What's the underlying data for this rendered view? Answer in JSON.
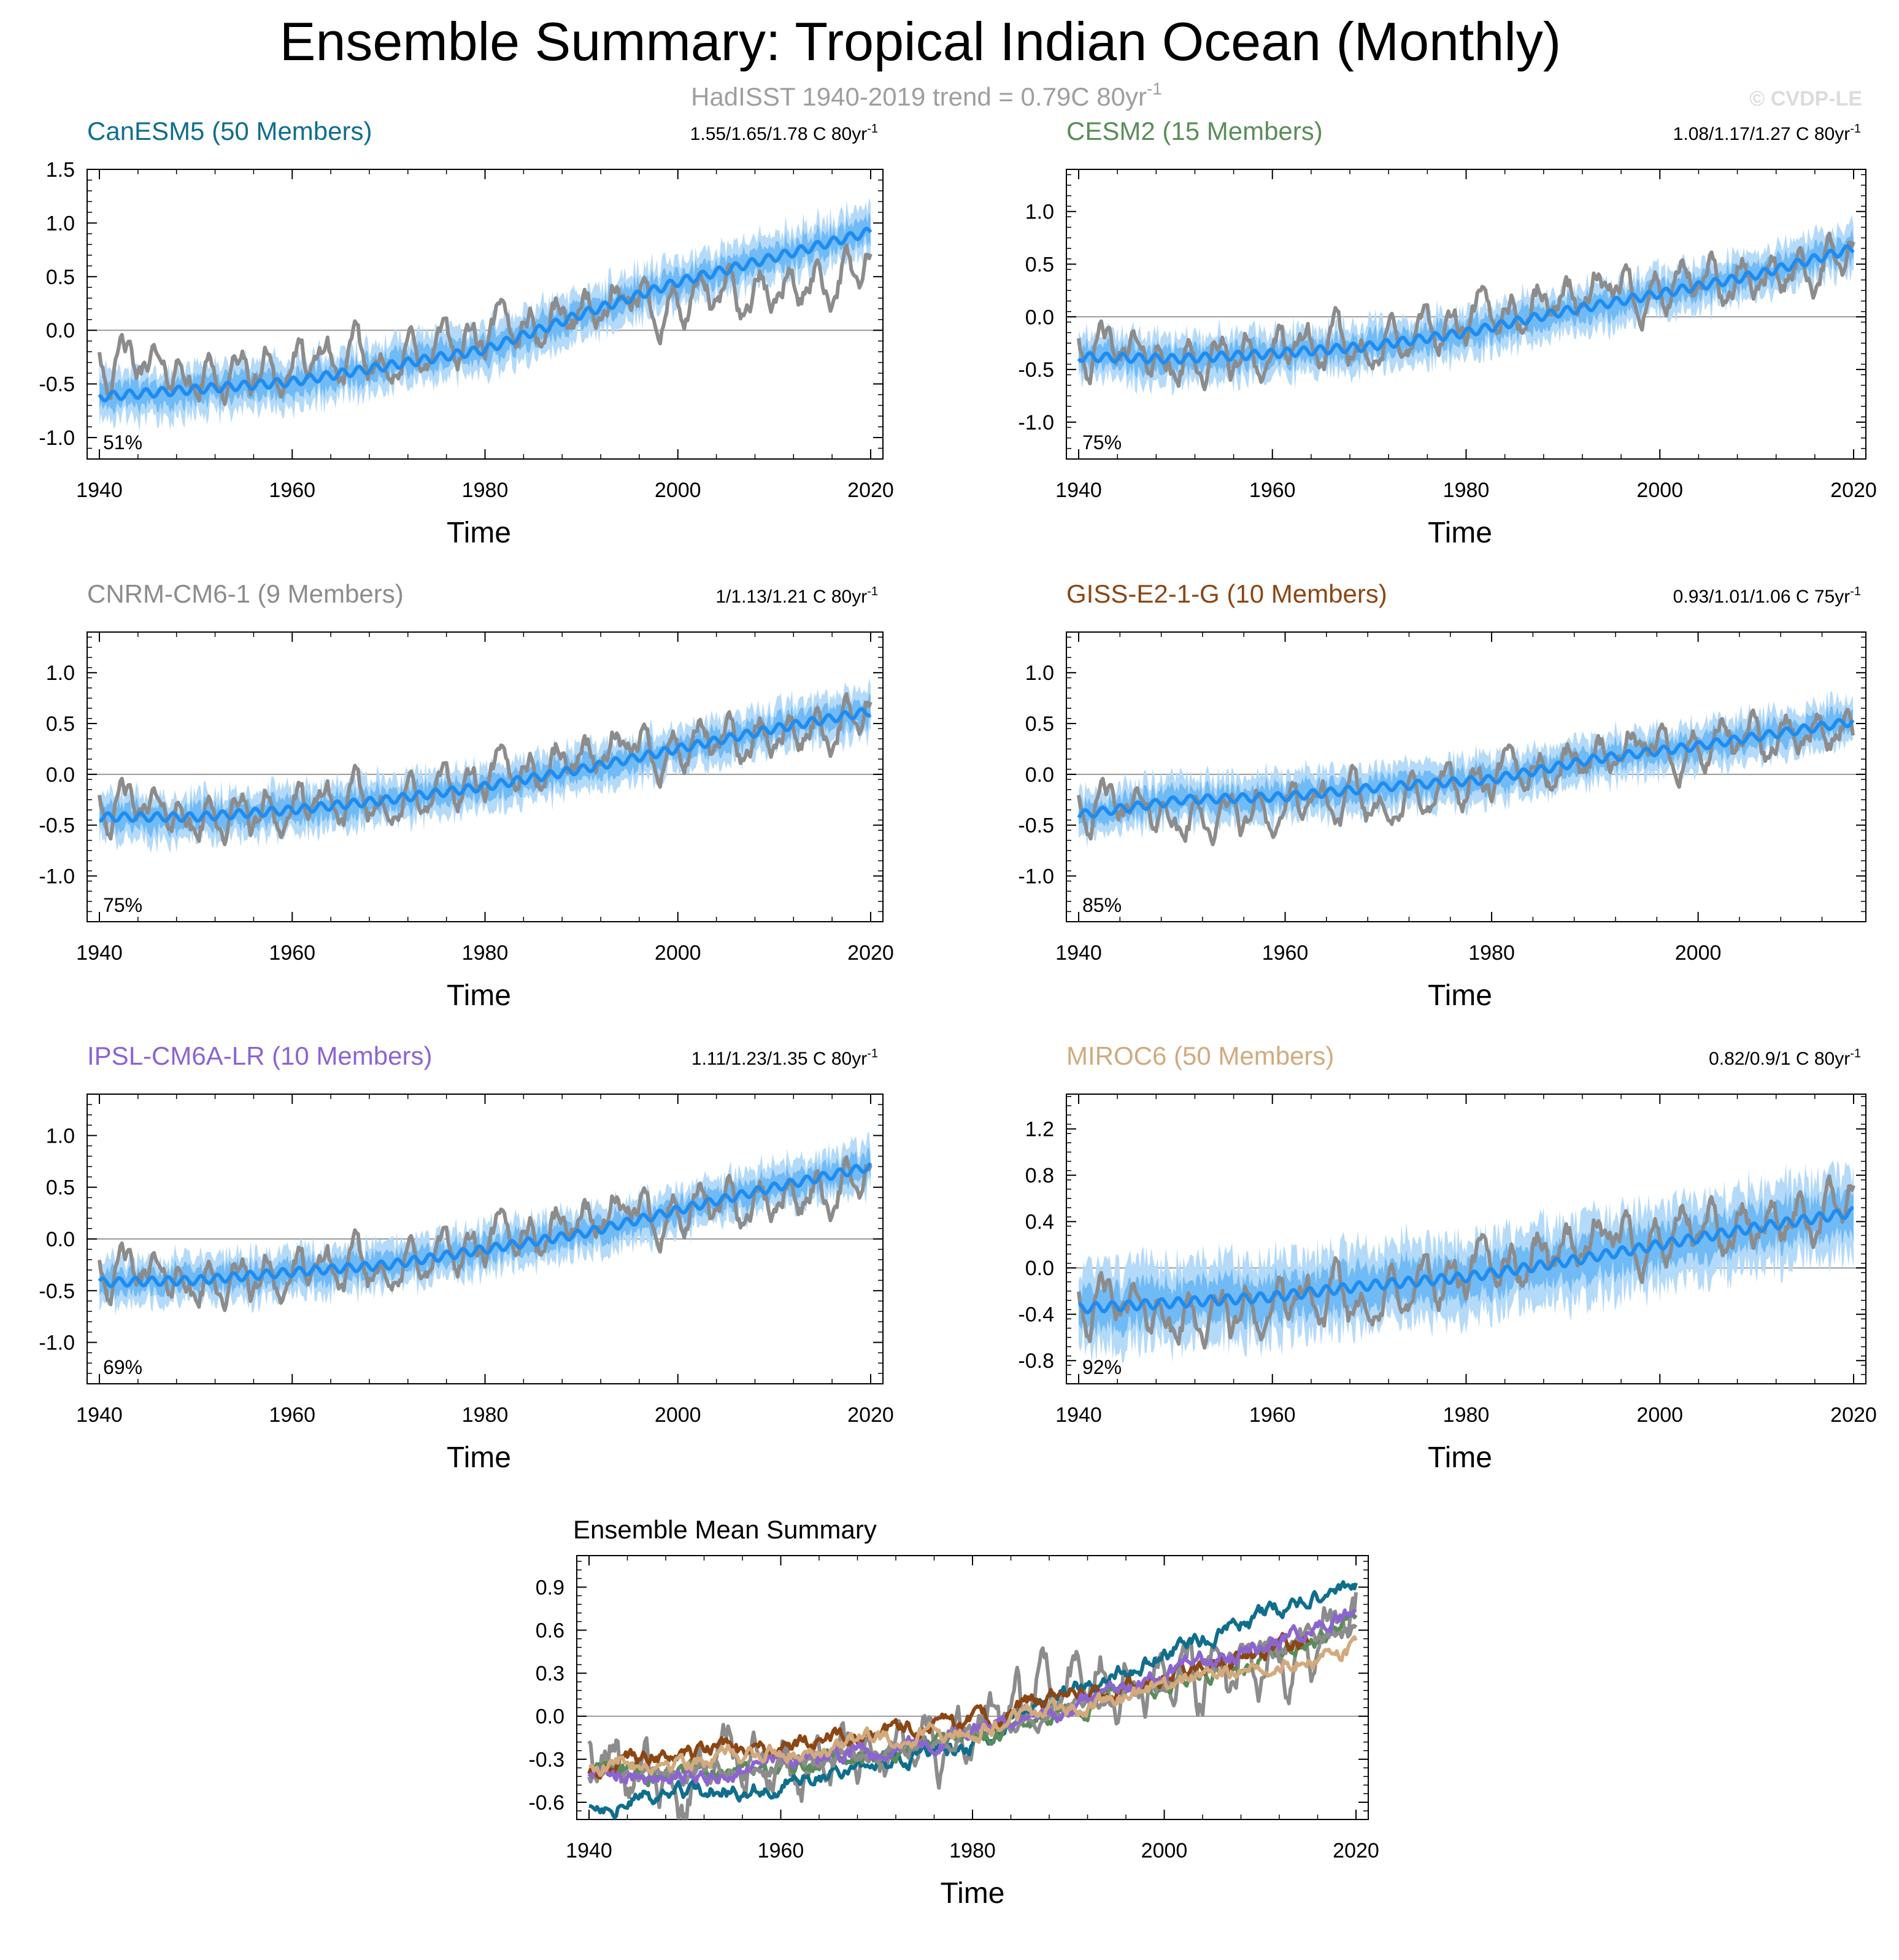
{
  "figure": {
    "title": "Ensemble Summary: Tropical Indian Ocean (Monthly)",
    "subtitle_main": "HadISST 1940-2019 trend = 0.79C 80yr",
    "subtitle_sup": "-1",
    "credit": "© CVDP-LE"
  },
  "colors": {
    "obs": "#8c8c8c",
    "ens_mean": "#1e8cf0",
    "ens_band_outer": "#b4dafa",
    "ens_band_inner": "#64b4f5",
    "zero_line": "#9a9a9a",
    "canesm5": "#0f6e8c",
    "cesm2": "#5a8c5a",
    "cnrm": "#8c8c8c",
    "giss": "#8c4614",
    "ipsl": "#8c64d2",
    "miroc6": "#d2aa7d"
  },
  "chart_data": [
    {
      "id": "canesm5",
      "type": "line",
      "title": "CanESM5 (50 Members)",
      "title_color": "#0f6e8c",
      "trend_text": "1.55/1.65/1.78 C 80yr",
      "trend_sup": "-1",
      "percent_label": "51%",
      "xlabel": "Time",
      "xlim": [
        1940,
        2020
      ],
      "ylim": [
        -1.2,
        1.5
      ],
      "xticks": [
        1940,
        1960,
        1980,
        2000,
        2020
      ],
      "yticks": [
        -1.0,
        -0.5,
        0.0,
        0.5,
        1.0,
        1.5
      ],
      "ytick_labels": [
        "-1.0",
        "-0.5",
        "0.0",
        "0.5",
        "1.0",
        "1.5"
      ],
      "series": [
        {
          "name": "Ensemble mean",
          "x": [
            1940,
            1950,
            1960,
            1970,
            1980,
            1990,
            2000,
            2010,
            2020
          ],
          "values": [
            -0.62,
            -0.55,
            -0.48,
            -0.33,
            -0.18,
            0.15,
            0.45,
            0.68,
            0.92
          ]
        },
        {
          "name": "HadISST",
          "x": [
            1940,
            1950,
            1960,
            1970,
            1980,
            1990,
            2000,
            2010,
            2020
          ],
          "values": [
            -0.25,
            -0.45,
            -0.35,
            -0.3,
            -0.1,
            0.2,
            0.25,
            0.35,
            0.6
          ]
        }
      ]
    },
    {
      "id": "cesm2",
      "type": "line",
      "title": "CESM2 (15 Members)",
      "title_color": "#5a8c5a",
      "trend_text": "1.08/1.17/1.27 C 80yr",
      "trend_sup": "-1",
      "percent_label": "75%",
      "xlabel": "Time",
      "xlim": [
        1940,
        2020
      ],
      "ylim": [
        -1.35,
        1.4
      ],
      "xticks": [
        1940,
        1960,
        1980,
        2000,
        2020
      ],
      "yticks": [
        -1.0,
        -0.5,
        0.0,
        0.5,
        1.0
      ],
      "ytick_labels": [
        "-1.0",
        "-0.5",
        "0.0",
        "0.5",
        "1.0"
      ],
      "series": [
        {
          "name": "Ensemble mean",
          "x": [
            1940,
            1950,
            1960,
            1970,
            1980,
            1990,
            2000,
            2010,
            2020
          ],
          "values": [
            -0.38,
            -0.4,
            -0.35,
            -0.28,
            -0.15,
            0.05,
            0.22,
            0.4,
            0.65
          ]
        },
        {
          "name": "HadISST",
          "x": [
            1940,
            1950,
            1960,
            1970,
            1980,
            1990,
            2000,
            2010,
            2020
          ],
          "values": [
            -0.25,
            -0.45,
            -0.35,
            -0.3,
            -0.1,
            0.2,
            0.25,
            0.35,
            0.6
          ]
        }
      ]
    },
    {
      "id": "cnrm",
      "type": "line",
      "title": "CNRM-CM6-1 (9 Members)",
      "title_color": "#8c8c8c",
      "trend_text": "1/1.13/1.21 C 80yr",
      "trend_sup": "-1",
      "percent_label": "75%",
      "xlabel": "Time",
      "xlim": [
        1940,
        2020
      ],
      "ylim": [
        -1.45,
        1.4
      ],
      "xticks": [
        1940,
        1960,
        1980,
        2000,
        2020
      ],
      "yticks": [
        -1.0,
        -0.5,
        0.0,
        0.5,
        1.0
      ],
      "ytick_labels": [
        "-1.0",
        "-0.5",
        "0.0",
        "0.5",
        "1.0"
      ],
      "series": [
        {
          "name": "Ensemble mean",
          "x": [
            1940,
            1950,
            1960,
            1970,
            1980,
            1990,
            2000,
            2010,
            2020
          ],
          "values": [
            -0.42,
            -0.42,
            -0.35,
            -0.25,
            -0.12,
            0.05,
            0.25,
            0.45,
            0.62
          ]
        },
        {
          "name": "HadISST",
          "x": [
            1940,
            1950,
            1960,
            1970,
            1980,
            1990,
            2000,
            2010,
            2020
          ],
          "values": [
            -0.25,
            -0.45,
            -0.35,
            -0.3,
            -0.1,
            0.2,
            0.25,
            0.35,
            0.6
          ]
        }
      ]
    },
    {
      "id": "giss",
      "type": "line",
      "title": "GISS-E2-1-G (10 Members)",
      "title_color": "#8c4614",
      "trend_text": "0.93/1.01/1.06 C 75yr",
      "trend_sup": "-1",
      "percent_label": "85%",
      "xlabel": "Time",
      "xlim": [
        1940,
        2015
      ],
      "ylim": [
        -1.45,
        1.4
      ],
      "xticks": [
        1940,
        1960,
        1980,
        2000
      ],
      "yticks": [
        -1.0,
        -0.5,
        0.0,
        0.5,
        1.0
      ],
      "ytick_labels": [
        "-1.0",
        "-0.5",
        "0.0",
        "0.5",
        "1.0"
      ],
      "series": [
        {
          "name": "Ensemble mean",
          "x": [
            1940,
            1950,
            1960,
            1970,
            1980,
            1990,
            2000,
            2015
          ],
          "values": [
            -0.4,
            -0.25,
            -0.22,
            -0.12,
            -0.05,
            0.15,
            0.28,
            0.52
          ]
        },
        {
          "name": "HadISST",
          "x": [
            1940,
            1950,
            1960,
            1970,
            1980,
            1990,
            2000,
            2015
          ],
          "values": [
            -0.25,
            -0.45,
            -0.35,
            -0.3,
            -0.1,
            0.2,
            0.25,
            0.45
          ]
        }
      ]
    },
    {
      "id": "ipsl",
      "type": "line",
      "title": "IPSL-CM6A-LR (10 Members)",
      "title_color": "#8c64d2",
      "trend_text": "1.11/1.23/1.35 C 80yr",
      "trend_sup": "-1",
      "percent_label": "69%",
      "xlabel": "Time",
      "xlim": [
        1940,
        2020
      ],
      "ylim": [
        -1.4,
        1.4
      ],
      "xticks": [
        1940,
        1960,
        1980,
        2000,
        2020
      ],
      "yticks": [
        -1.0,
        -0.5,
        0.0,
        0.5,
        1.0
      ],
      "ytick_labels": [
        "-1.0",
        "-0.5",
        "0.0",
        "0.5",
        "1.0"
      ],
      "series": [
        {
          "name": "Ensemble mean",
          "x": [
            1940,
            1950,
            1960,
            1970,
            1980,
            1990,
            2000,
            2010,
            2020
          ],
          "values": [
            -0.42,
            -0.4,
            -0.32,
            -0.25,
            -0.1,
            0.05,
            0.28,
            0.5,
            0.7
          ]
        },
        {
          "name": "HadISST",
          "x": [
            1940,
            1950,
            1960,
            1970,
            1980,
            1990,
            2000,
            2010,
            2020
          ],
          "values": [
            -0.25,
            -0.45,
            -0.35,
            -0.3,
            -0.1,
            0.2,
            0.25,
            0.35,
            0.6
          ]
        }
      ]
    },
    {
      "id": "miroc6",
      "type": "line",
      "title": "MIROC6 (50 Members)",
      "title_color": "#d2aa7d",
      "trend_text": "0.82/0.9/1 C 80yr",
      "trend_sup": "-1",
      "percent_label": "92%",
      "xlabel": "Time",
      "xlim": [
        1940,
        2020
      ],
      "ylim": [
        -1.0,
        1.5
      ],
      "xticks": [
        1940,
        1960,
        1980,
        2000,
        2020
      ],
      "yticks": [
        -0.8,
        -0.4,
        0.0,
        0.4,
        0.8,
        1.2
      ],
      "ytick_labels": [
        "-0.8",
        "-0.4",
        "0.0",
        "0.4",
        "0.8",
        "1.2"
      ],
      "series": [
        {
          "name": "Ensemble mean",
          "x": [
            1940,
            1950,
            1960,
            1970,
            1980,
            1990,
            2000,
            2010,
            2020
          ],
          "values": [
            -0.35,
            -0.3,
            -0.25,
            -0.15,
            -0.08,
            0.05,
            0.2,
            0.35,
            0.48
          ]
        },
        {
          "name": "HadISST",
          "x": [
            1940,
            1950,
            1960,
            1970,
            1980,
            1990,
            2000,
            2010,
            2020
          ],
          "values": [
            -0.25,
            -0.45,
            -0.35,
            -0.3,
            -0.1,
            0.2,
            0.25,
            0.35,
            0.6
          ]
        }
      ]
    },
    {
      "id": "summary",
      "type": "line",
      "title": "Ensemble Mean Summary",
      "title_color": "#000000",
      "xlabel": "Time",
      "xlim": [
        1940,
        2020
      ],
      "ylim": [
        -0.72,
        1.12
      ],
      "xticks": [
        1940,
        1960,
        1980,
        2000,
        2020
      ],
      "yticks": [
        -0.6,
        -0.3,
        0.0,
        0.3,
        0.6,
        0.9
      ],
      "ytick_labels": [
        "-0.6",
        "-0.3",
        "0.0",
        "0.3",
        "0.6",
        "0.9"
      ],
      "series": [
        {
          "name": "HadISST",
          "color": "#8c8c8c",
          "x": [
            1940,
            1950,
            1960,
            1970,
            1980,
            1990,
            2000,
            2010,
            2020
          ],
          "values": [
            -0.25,
            -0.45,
            -0.35,
            -0.3,
            -0.1,
            0.2,
            0.25,
            0.35,
            0.6
          ]
        },
        {
          "name": "CanESM5",
          "color": "#0f6e8c",
          "x": [
            1940,
            1950,
            1960,
            1970,
            1980,
            1990,
            2000,
            2010,
            2020
          ],
          "values": [
            -0.62,
            -0.55,
            -0.48,
            -0.33,
            -0.18,
            0.15,
            0.45,
            0.68,
            0.92
          ]
        },
        {
          "name": "CESM2",
          "color": "#5a8c5a",
          "x": [
            1940,
            1950,
            1960,
            1970,
            1980,
            1990,
            2000,
            2010,
            2020
          ],
          "values": [
            -0.38,
            -0.4,
            -0.35,
            -0.28,
            -0.15,
            0.05,
            0.22,
            0.4,
            0.65
          ]
        },
        {
          "name": "CNRM-CM6-1",
          "color": "#8c8c8c",
          "x": [
            1940,
            1950,
            1960,
            1970,
            1980,
            1990,
            2000,
            2010,
            2020
          ],
          "values": [
            -0.42,
            -0.42,
            -0.35,
            -0.25,
            -0.12,
            0.05,
            0.25,
            0.45,
            0.62
          ]
        },
        {
          "name": "GISS-E2-1-G",
          "color": "#8c4614",
          "x": [
            1940,
            1950,
            1960,
            1970,
            1980,
            1990,
            2000,
            2015
          ],
          "values": [
            -0.4,
            -0.25,
            -0.22,
            -0.12,
            -0.05,
            0.15,
            0.28,
            0.52
          ]
        },
        {
          "name": "IPSL-CM6A-LR",
          "color": "#8c64d2",
          "x": [
            1940,
            1950,
            1960,
            1970,
            1980,
            1990,
            2000,
            2010,
            2020
          ],
          "values": [
            -0.42,
            -0.4,
            -0.32,
            -0.25,
            -0.1,
            0.05,
            0.28,
            0.5,
            0.7
          ]
        },
        {
          "name": "MIROC6",
          "color": "#d2aa7d",
          "x": [
            1940,
            1950,
            1960,
            1970,
            1980,
            1990,
            2000,
            2010,
            2020
          ],
          "values": [
            -0.35,
            -0.3,
            -0.25,
            -0.15,
            -0.08,
            0.05,
            0.2,
            0.35,
            0.48
          ]
        }
      ]
    }
  ]
}
